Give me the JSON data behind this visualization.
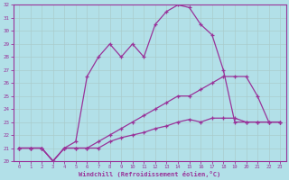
{
  "xlabel": "Windchill (Refroidissement éolien,°C)",
  "bg_color": "#b2e0e8",
  "grid_color": "#c8e8e8",
  "line_color": "#993399",
  "xlim": [
    -0.5,
    23.5
  ],
  "ylim": [
    20,
    32
  ],
  "yticks": [
    20,
    21,
    22,
    23,
    24,
    25,
    26,
    27,
    28,
    29,
    30,
    31,
    32
  ],
  "xticks": [
    0,
    1,
    2,
    3,
    4,
    5,
    6,
    7,
    8,
    9,
    10,
    11,
    12,
    13,
    14,
    15,
    16,
    17,
    18,
    19,
    20,
    21,
    22,
    23
  ],
  "curve1_x": [
    0,
    1,
    2,
    3,
    4,
    5,
    6,
    7,
    8,
    9,
    10,
    11,
    12,
    13,
    14,
    15,
    16,
    17,
    18,
    19,
    20,
    21,
    22,
    23
  ],
  "curve1_y": [
    21.0,
    21.0,
    21.0,
    20.0,
    21.0,
    21.5,
    26.5,
    28.0,
    29.0,
    28.0,
    29.0,
    28.0,
    30.5,
    31.5,
    32.0,
    31.8,
    30.5,
    29.7,
    27.0,
    23.0,
    23.0,
    23.0,
    23.0,
    23.0
  ],
  "curve2_x": [
    0,
    1,
    2,
    3,
    4,
    5,
    6,
    7,
    8,
    9,
    10,
    11,
    12,
    13,
    14,
    15,
    16,
    17,
    18,
    19,
    20,
    21,
    22,
    23
  ],
  "curve2_y": [
    21.0,
    21.0,
    21.0,
    20.0,
    21.0,
    21.0,
    21.0,
    21.5,
    22.0,
    22.5,
    23.0,
    23.5,
    24.0,
    24.5,
    25.0,
    25.0,
    25.5,
    26.0,
    26.5,
    26.5,
    26.5,
    25.0,
    23.0,
    23.0
  ],
  "curve3_x": [
    0,
    1,
    2,
    3,
    4,
    5,
    6,
    7,
    8,
    9,
    10,
    11,
    12,
    13,
    14,
    15,
    16,
    17,
    18,
    19,
    20,
    21,
    22,
    23
  ],
  "curve3_y": [
    21.0,
    21.0,
    21.0,
    20.0,
    21.0,
    21.0,
    21.0,
    21.0,
    21.5,
    21.8,
    22.0,
    22.2,
    22.5,
    22.7,
    23.0,
    23.2,
    23.0,
    23.3,
    23.3,
    23.3,
    23.0,
    23.0,
    23.0,
    23.0
  ]
}
